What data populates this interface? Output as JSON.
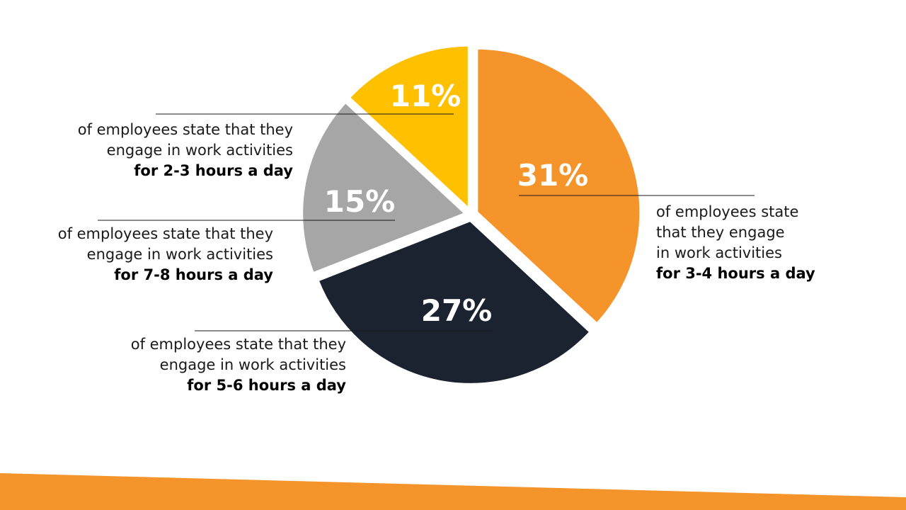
{
  "slide": {
    "accent_color": "#f5942a"
  },
  "chart_data": {
    "type": "pie",
    "slices": [
      {
        "label": "for 3-4 hours a day",
        "value": 31,
        "value_label": "31%",
        "color": "#f5942a"
      },
      {
        "label": "for 5-6 hours a day",
        "value": 27,
        "value_label": "27%",
        "color": "#1b2331"
      },
      {
        "label": "for 7-8 hours a day",
        "value": 15,
        "value_label": "15%",
        "color": "#a6a6a6"
      },
      {
        "label": "for 2-3 hours a day",
        "value": 11,
        "value_label": "11%",
        "color": "#ffc000"
      }
    ]
  },
  "callouts": {
    "c1": {
      "line1": "of employees state that they",
      "line2": "engage in work activities",
      "line3": "for 2-3 hours a day"
    },
    "c2": {
      "line1": "of employees state that they",
      "line2": "engage in work activities",
      "line3": "for 7-8 hours a day"
    },
    "c3": {
      "line1": "of employees state that they",
      "line2": "engage in work activities",
      "line3": "for 5-6 hours a day"
    },
    "c4": {
      "line1": "of employees state",
      "line2": "that they engage",
      "line3": "in work activities",
      "line4": "for 3-4 hours a day"
    }
  }
}
